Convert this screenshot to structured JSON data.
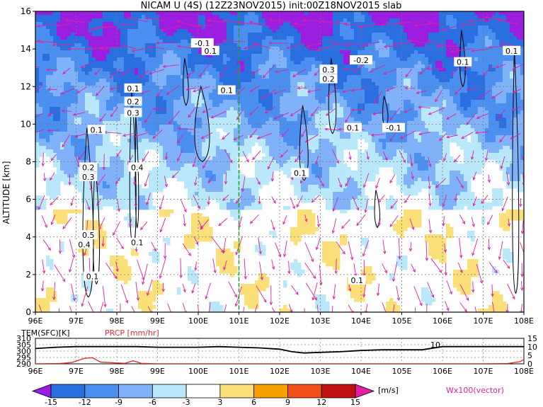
{
  "chart_data": [
    {
      "type": "heatmap",
      "title": "NICAM U (4S) (12Z23NOV2015) init:00Z18NOV2015 slab",
      "ylabel": "ALTITUDE [km]",
      "x_ticks": [
        "96E",
        "97E",
        "98E",
        "99E",
        "100E",
        "101E",
        "102E",
        "103E",
        "104E",
        "105E",
        "106E",
        "107E",
        "108E"
      ],
      "y_ticks": [
        "0",
        "2",
        "4",
        "6",
        "8",
        "10",
        "12",
        "14",
        "16"
      ],
      "xlim": [
        96,
        108
      ],
      "ylim": [
        0,
        16
      ],
      "marker_lon": 101,
      "contour_labels": [
        {
          "text": "-0.1",
          "lon": 100.1,
          "alt": 14.3
        },
        {
          "text": "0.1",
          "lon": 100.3,
          "alt": 13.9
        },
        {
          "text": "0.1",
          "lon": 98.4,
          "alt": 11.9
        },
        {
          "text": "0.2",
          "lon": 98.4,
          "alt": 11.2
        },
        {
          "text": "0.3",
          "lon": 98.4,
          "alt": 10.6
        },
        {
          "text": "0.1",
          "lon": 100.7,
          "alt": 11.8
        },
        {
          "text": "0.1",
          "lon": 97.5,
          "alt": 9.7
        },
        {
          "text": "0.2",
          "lon": 97.3,
          "alt": 7.7
        },
        {
          "text": "0.3",
          "lon": 97.3,
          "alt": 7.2
        },
        {
          "text": "0.4",
          "lon": 98.5,
          "alt": 7.7
        },
        {
          "text": "0.5",
          "lon": 97.3,
          "alt": 4.1
        },
        {
          "text": "0.4",
          "lon": 97.2,
          "alt": 3.6
        },
        {
          "text": "0.1",
          "lon": 98.5,
          "alt": 3.7
        },
        {
          "text": "0.1",
          "lon": 97.4,
          "alt": 1.9
        },
        {
          "text": "0.3",
          "lon": 103.2,
          "alt": 12.9
        },
        {
          "text": "0.2",
          "lon": 103.2,
          "alt": 12.4
        },
        {
          "text": "-0.2",
          "lon": 104.0,
          "alt": 13.4
        },
        {
          "text": "0.1",
          "lon": 103.8,
          "alt": 9.8
        },
        {
          "text": "-0.1",
          "lon": 104.8,
          "alt": 9.8
        },
        {
          "text": "0.1",
          "lon": 106.5,
          "alt": 13.3
        },
        {
          "text": "0.1",
          "lon": 107.7,
          "alt": 13.9
        },
        {
          "text": "0.1",
          "lon": 102.5,
          "alt": 7.4
        },
        {
          "text": "0.1",
          "lon": 103.9,
          "alt": 1.7
        }
      ],
      "vector_label": "Wx100(vector)",
      "colorbar": {
        "unit": "[m/s]",
        "tick_labels": [
          "-15",
          "-12",
          "-9",
          "-6",
          "-3",
          "3",
          "6",
          "9",
          "12",
          "15"
        ],
        "colors": [
          "#9b1ee0",
          "#2a6fe0",
          "#4b8ff0",
          "#7fb2f8",
          "#b8e8fa",
          "#ffffff",
          "#fbe07a",
          "#f8a000",
          "#f05018",
          "#c01010",
          "#e020a0"
        ]
      }
    },
    {
      "type": "line",
      "left_label": "TEM(SFC)[K]",
      "right_label": "PRCP [mm/hr]",
      "left_ticks": [
        "310",
        "305",
        "300",
        "295",
        "290"
      ],
      "right_ticks": [
        "15",
        "10",
        "5",
        "0"
      ],
      "ylim_left": [
        290,
        310
      ],
      "ylim_right": [
        0,
        15
      ],
      "x_ticks": [
        "96E",
        "97E",
        "98E",
        "99E",
        "100E",
        "101E",
        "102E",
        "103E",
        "104E",
        "105E",
        "106E",
        "107E",
        "108E"
      ],
      "annotation": "10",
      "series": [
        {
          "role": "temperature",
          "color": "#000000",
          "x": [
            96,
            96.5,
            97,
            97.5,
            98,
            98.5,
            99,
            99.5,
            100,
            100.5,
            101,
            101.5,
            102,
            102.3,
            102.6,
            103,
            103.5,
            104,
            104.5,
            105,
            105.5,
            106,
            106.5,
            107,
            107.5,
            108
          ],
          "y": [
            302,
            303,
            303.5,
            303.5,
            303.5,
            303.5,
            303,
            303,
            303,
            303.5,
            303,
            302.5,
            301.5,
            299.5,
            298.5,
            299,
            299.5,
            300.5,
            301,
            301,
            301,
            303.5,
            303.5,
            303.5,
            303.5,
            303.5
          ]
        },
        {
          "role": "precipitation",
          "color": "#e03030",
          "x": [
            96,
            96.6,
            96.9,
            97.2,
            97.4,
            97.6,
            98.2,
            98.4,
            98.6,
            99,
            100,
            101,
            102,
            103,
            104,
            105,
            106,
            107,
            107.6,
            107.9,
            108
          ],
          "y": [
            0,
            0.2,
            0.8,
            3.2,
            3.6,
            1,
            0.3,
            1.8,
            0.3,
            0,
            0,
            0,
            0,
            0,
            0,
            0,
            0,
            0,
            0.2,
            1.2,
            2.5
          ]
        }
      ]
    }
  ]
}
